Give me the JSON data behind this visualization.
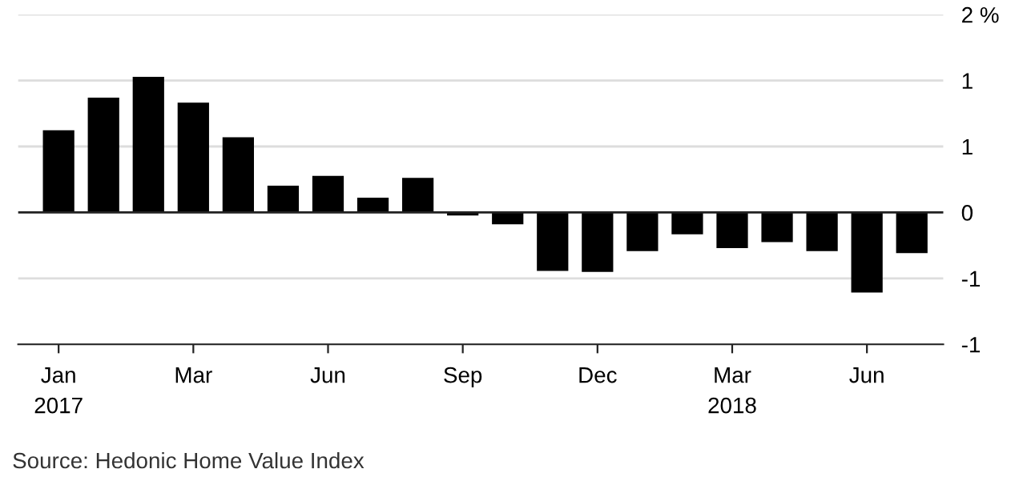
{
  "chart_data": {
    "type": "bar",
    "categories": [
      "Jan\n2017",
      null,
      null,
      "Mar",
      null,
      null,
      "Jun",
      null,
      null,
      "Sep",
      null,
      null,
      "Dec",
      null,
      null,
      "Mar\n2018",
      null,
      null,
      "Jun",
      null
    ],
    "values": [
      0.83,
      1.16,
      1.37,
      1.11,
      0.76,
      0.27,
      0.37,
      0.15,
      0.35,
      -0.03,
      -0.12,
      -0.59,
      -0.6,
      -0.39,
      -0.22,
      -0.36,
      -0.3,
      -0.39,
      -0.81,
      -0.41
    ],
    "color": "#000000",
    "ylim": [
      -1.333,
      2.0
    ],
    "yticks": [
      {
        "value": -1.333,
        "label": "-1"
      },
      {
        "value": -0.667,
        "label": "-1"
      },
      0,
      {
        "value": 0.667,
        "label": "1"
      },
      {
        "value": 1.333,
        "label": "1"
      },
      {
        "value": 2,
        "label": "2 %"
      }
    ],
    "grid": "y",
    "annotations": [
      "Source: Hedonic Home Value Index"
    ]
  }
}
